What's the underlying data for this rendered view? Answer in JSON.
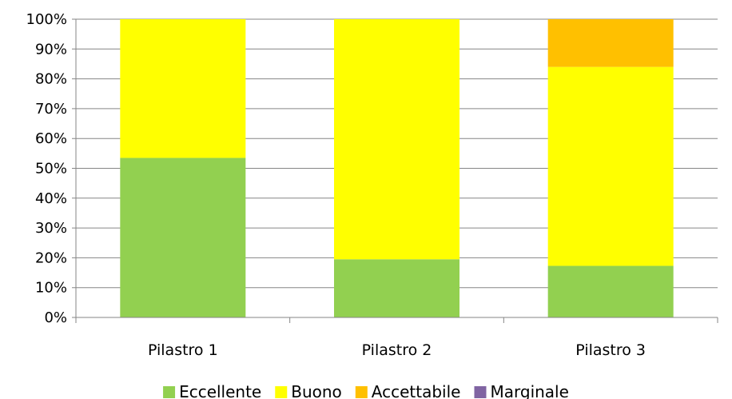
{
  "chart_data": {
    "type": "bar",
    "stacked": true,
    "percent": true,
    "categories": [
      "Pilastro 1",
      "Pilastro 2",
      "Pilastro 3"
    ],
    "series": [
      {
        "name": "Eccellente",
        "color": "#92D050",
        "values": [
          53.5,
          19.5,
          17.3
        ]
      },
      {
        "name": "Buono",
        "color": "#FFFF00",
        "values": [
          46.5,
          80.5,
          66.7
        ]
      },
      {
        "name": "Accettabile",
        "color": "#FFC000",
        "values": [
          0,
          0,
          16.0
        ]
      },
      {
        "name": "Marginale",
        "color": "#8064A2",
        "values": [
          0,
          0,
          0
        ]
      }
    ],
    "ylim": [
      0,
      100
    ],
    "yticks": [
      "0%",
      "10%",
      "20%",
      "30%",
      "40%",
      "50%",
      "60%",
      "70%",
      "80%",
      "90%",
      "100%"
    ],
    "grid": true,
    "legend_position": "bottom"
  }
}
